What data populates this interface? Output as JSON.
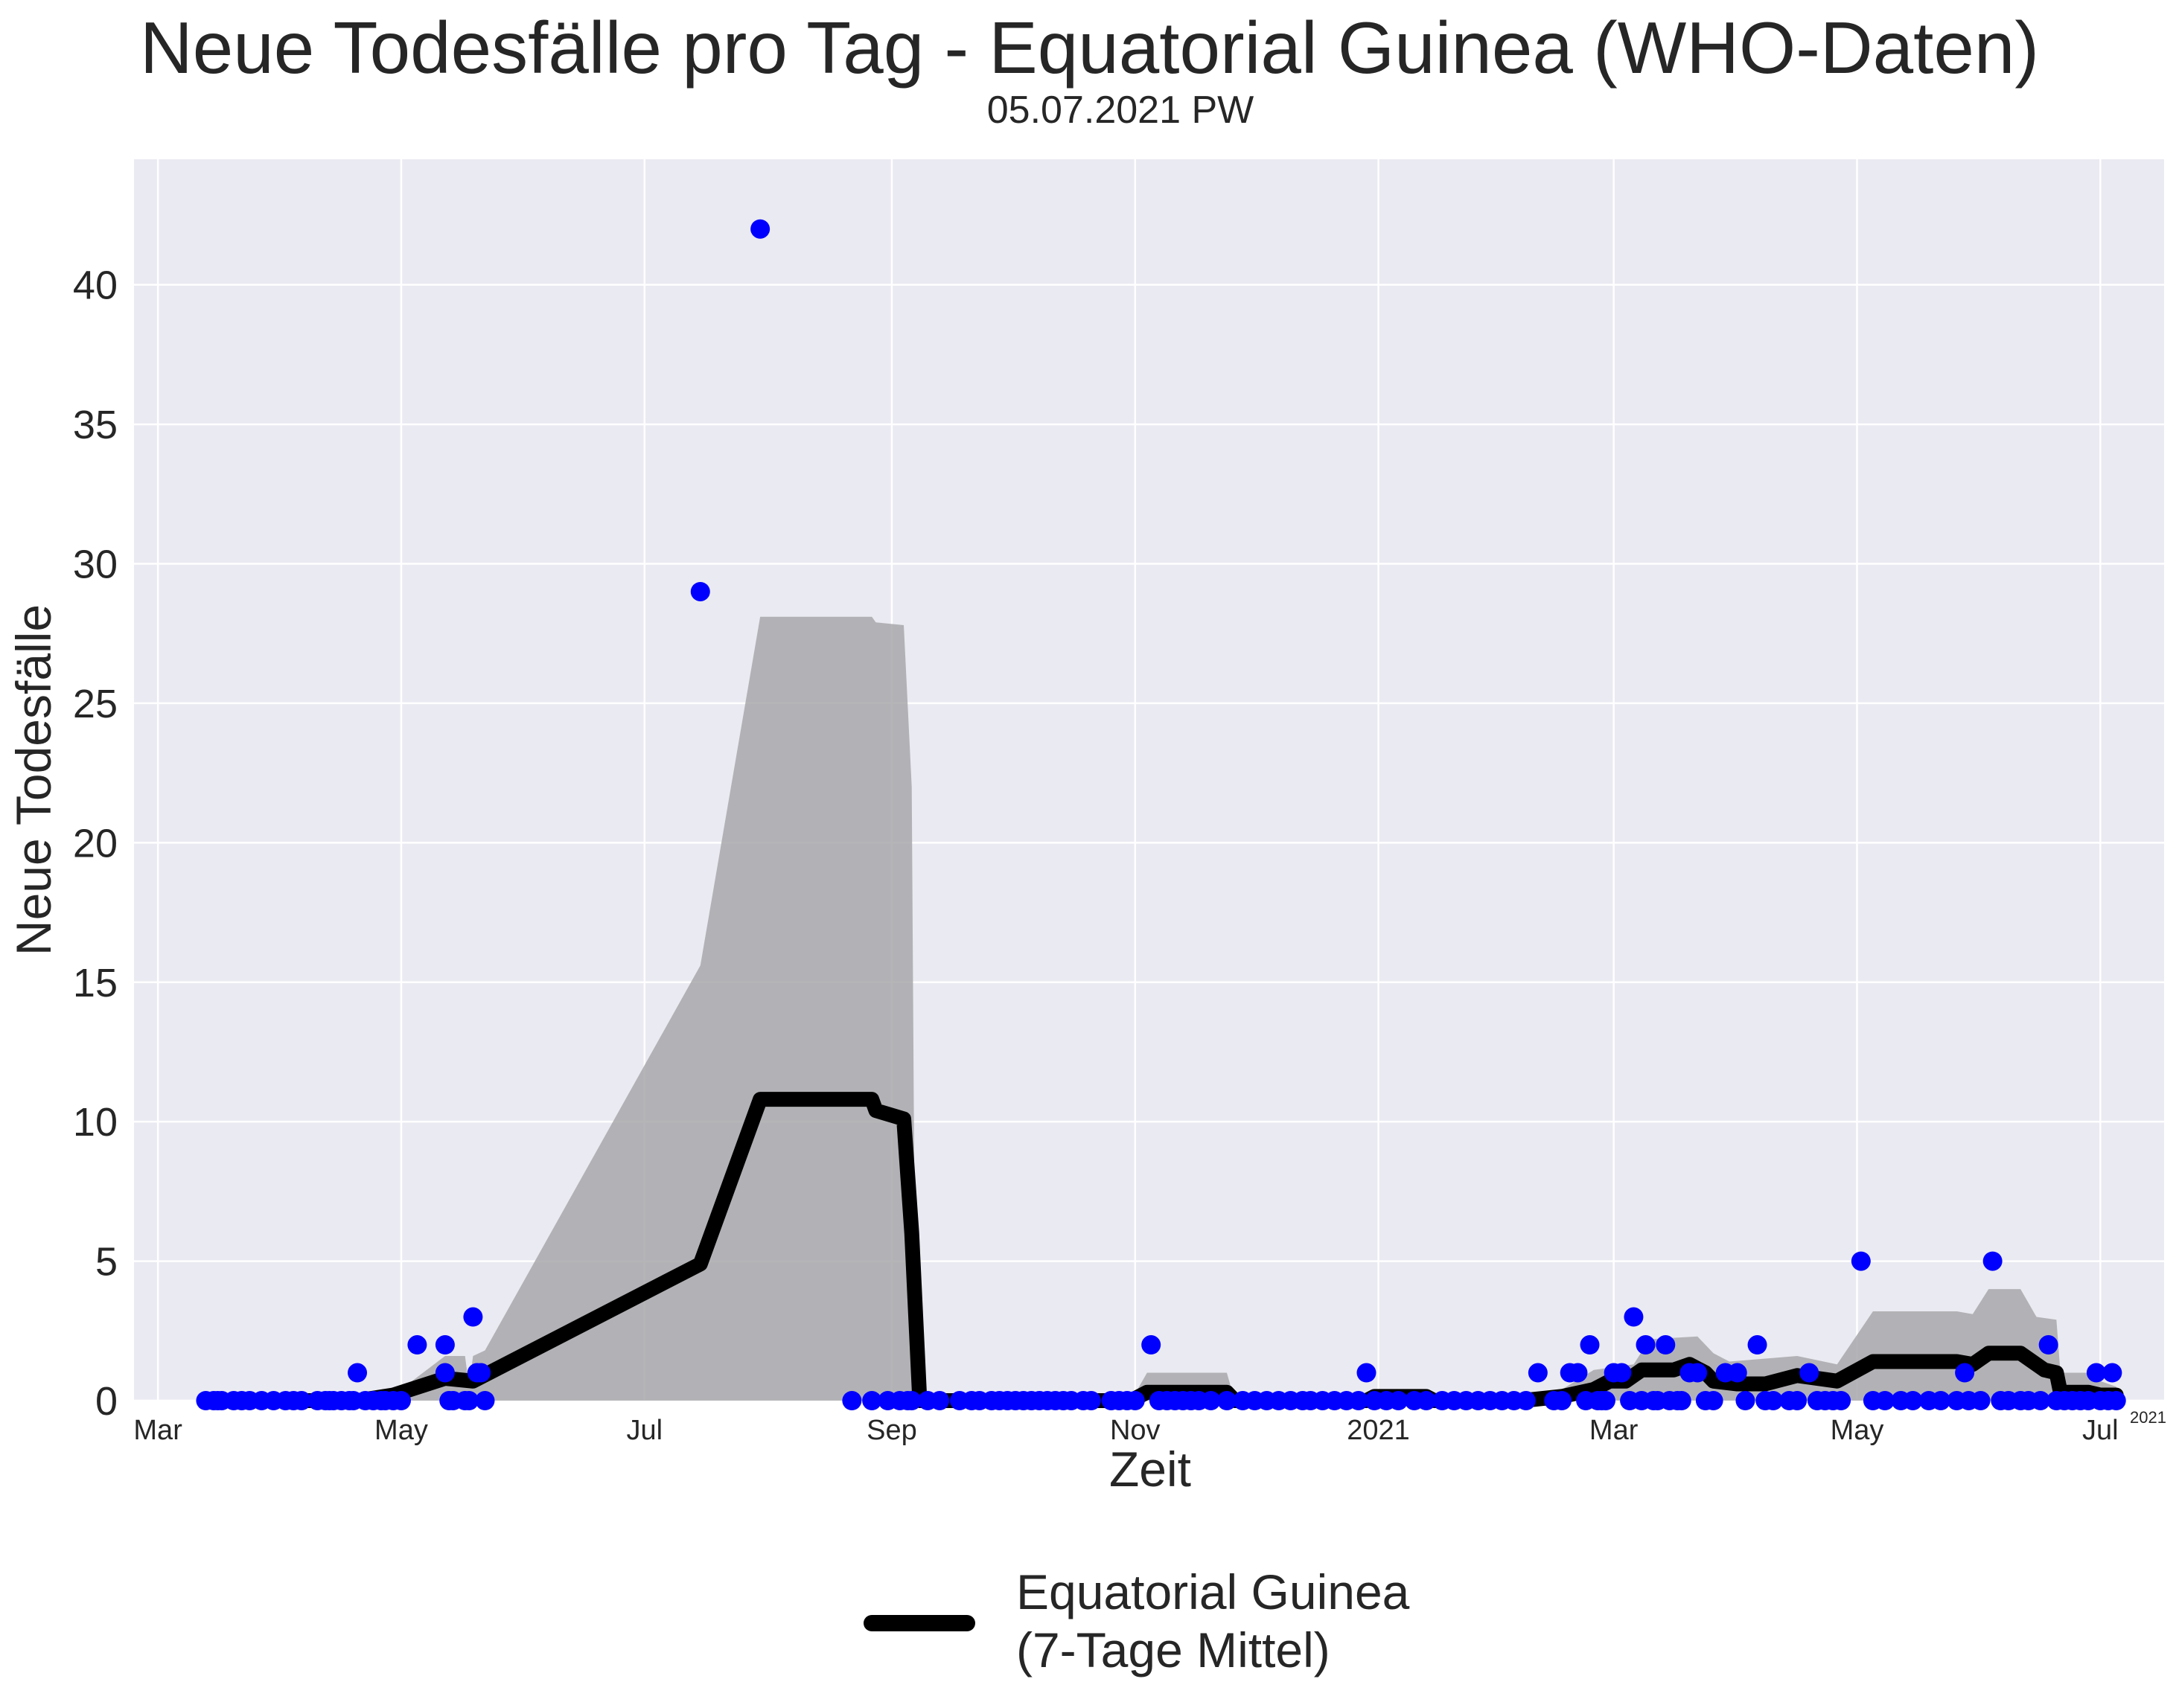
{
  "title": "Neue Todesfälle pro Tag - Equatorial Guinea (WHO-Daten)",
  "subtitle": "05.07.2021 PW",
  "colors": {
    "background": "#eaeaf2",
    "grid": "#ffffff",
    "band": "#a8a8ab",
    "line": "#000000",
    "points": "#0000ff"
  },
  "chart_data": {
    "type": "line",
    "title": "Neue Todesfälle pro Tag - Equatorial Guinea (WHO-Daten)",
    "xlabel": "Zeit",
    "ylabel": "Neue Todesfälle",
    "x_offset_label": "2021",
    "xlim": [
      "2020-02-24",
      "2021-07-17"
    ],
    "ylim": [
      0,
      44.5
    ],
    "grid": true,
    "legend_position": "bottom-center",
    "x_ticks": [
      {
        "date": "2020-03-01",
        "label": "Mar"
      },
      {
        "date": "2020-05-01",
        "label": "May"
      },
      {
        "date": "2020-07-01",
        "label": "Jul"
      },
      {
        "date": "2020-09-01",
        "label": "Sep"
      },
      {
        "date": "2020-11-01",
        "label": "Nov"
      },
      {
        "date": "2021-01-01",
        "label": "2021"
      },
      {
        "date": "2021-03-01",
        "label": "Mar"
      },
      {
        "date": "2021-05-01",
        "label": "May"
      },
      {
        "date": "2021-07-01",
        "label": "Jul"
      }
    ],
    "y_ticks": [
      0,
      5,
      10,
      15,
      20,
      25,
      30,
      35,
      40
    ],
    "series": [
      {
        "name": "Equatorial Guinea\n(7-Tage Mittel)",
        "kind": "line",
        "points": [
          [
            "2020-03-13",
            0
          ],
          [
            "2020-04-20",
            0
          ],
          [
            "2020-04-29",
            0.2
          ],
          [
            "2020-05-12",
            0.8
          ],
          [
            "2020-05-19",
            0.7
          ],
          [
            "2020-07-15",
            4.9
          ],
          [
            "2020-07-30",
            10.8
          ],
          [
            "2020-08-27",
            10.8
          ],
          [
            "2020-08-28",
            10.4
          ],
          [
            "2020-09-04",
            10.1
          ],
          [
            "2020-09-06",
            6
          ],
          [
            "2020-09-08",
            0
          ],
          [
            "2020-10-31",
            0
          ],
          [
            "2020-11-04",
            0.3
          ],
          [
            "2020-11-24",
            0.3
          ],
          [
            "2020-11-26",
            0
          ],
          [
            "2020-12-29",
            0
          ],
          [
            "2020-12-31",
            0.15
          ],
          [
            "2021-01-13",
            0.15
          ],
          [
            "2021-01-15",
            0
          ],
          [
            "2021-02-06",
            0
          ],
          [
            "2021-02-16",
            0.15
          ],
          [
            "2021-02-24",
            0.4
          ],
          [
            "2021-02-28",
            0.7
          ],
          [
            "2021-03-04",
            0.7
          ],
          [
            "2021-03-08",
            1.1
          ],
          [
            "2021-03-16",
            1.1
          ],
          [
            "2021-03-20",
            1.3
          ],
          [
            "2021-03-24",
            1.0
          ],
          [
            "2021-03-26",
            0.7
          ],
          [
            "2021-04-01",
            0.6
          ],
          [
            "2021-04-08",
            0.6
          ],
          [
            "2021-04-16",
            0.9
          ],
          [
            "2021-04-26",
            0.7
          ],
          [
            "2021-05-05",
            1.4
          ],
          [
            "2021-05-26",
            1.4
          ],
          [
            "2021-05-30",
            1.3
          ],
          [
            "2021-06-03",
            1.7
          ],
          [
            "2021-06-11",
            1.7
          ],
          [
            "2021-06-15",
            1.3
          ],
          [
            "2021-06-17",
            1.1
          ],
          [
            "2021-06-20",
            1.0
          ],
          [
            "2021-06-21",
            0.3
          ],
          [
            "2021-06-28",
            0.3
          ],
          [
            "2021-07-01",
            0.2
          ],
          [
            "2021-07-05",
            0.2
          ]
        ]
      },
      {
        "name": "",
        "kind": "band",
        "points": [
          [
            "2020-03-13",
            0
          ],
          [
            "2020-04-20",
            0
          ],
          [
            "2020-04-30",
            0.3
          ],
          [
            "2020-05-12",
            1.6
          ],
          [
            "2020-05-17",
            1.6
          ],
          [
            "2020-05-18",
            0.5
          ],
          [
            "2020-05-19",
            1.6
          ],
          [
            "2020-05-22",
            1.8
          ],
          [
            "2020-07-15",
            15.6
          ],
          [
            "2020-07-30",
            28.1
          ],
          [
            "2020-08-27",
            28.1
          ],
          [
            "2020-08-28",
            27.9
          ],
          [
            "2020-09-04",
            27.8
          ],
          [
            "2020-09-06",
            22
          ],
          [
            "2020-09-07",
            0
          ],
          [
            "2020-10-31",
            0
          ],
          [
            "2020-11-04",
            1.0
          ],
          [
            "2020-11-24",
            1.0
          ],
          [
            "2020-11-26",
            0
          ],
          [
            "2020-12-29",
            0
          ],
          [
            "2020-12-31",
            0.4
          ],
          [
            "2021-01-13",
            0.4
          ],
          [
            "2021-01-15",
            0
          ],
          [
            "2021-02-06",
            0
          ],
          [
            "2021-02-16",
            0.4
          ],
          [
            "2021-02-24",
            1.1
          ],
          [
            "2021-03-06",
            1.3
          ],
          [
            "2021-03-10",
            2.2
          ],
          [
            "2021-03-22",
            2.3
          ],
          [
            "2021-03-26",
            1.7
          ],
          [
            "2021-03-30",
            1.4
          ],
          [
            "2021-04-16",
            1.6
          ],
          [
            "2021-04-26",
            1.3
          ],
          [
            "2021-05-05",
            3.2
          ],
          [
            "2021-05-26",
            3.2
          ],
          [
            "2021-05-30",
            3.1
          ],
          [
            "2021-06-03",
            4.0
          ],
          [
            "2021-06-11",
            4.0
          ],
          [
            "2021-06-15",
            3.0
          ],
          [
            "2021-06-20",
            2.9
          ],
          [
            "2021-06-21",
            1.0
          ],
          [
            "2021-06-28",
            1.0
          ],
          [
            "2021-07-01",
            0.7
          ],
          [
            "2021-07-05",
            0.5
          ]
        ]
      },
      {
        "name": "",
        "kind": "scatter",
        "points": [
          [
            "2020-03-13",
            0
          ],
          [
            "2020-03-15",
            0
          ],
          [
            "2020-03-16",
            0
          ],
          [
            "2020-03-17",
            0
          ],
          [
            "2020-03-20",
            0
          ],
          [
            "2020-03-22",
            0
          ],
          [
            "2020-03-24",
            0
          ],
          [
            "2020-03-27",
            0
          ],
          [
            "2020-03-30",
            0
          ],
          [
            "2020-04-02",
            0
          ],
          [
            "2020-04-04",
            0
          ],
          [
            "2020-04-06",
            0
          ],
          [
            "2020-04-10",
            0
          ],
          [
            "2020-04-12",
            0
          ],
          [
            "2020-04-13",
            0
          ],
          [
            "2020-04-14",
            0
          ],
          [
            "2020-04-16",
            0
          ],
          [
            "2020-04-18",
            0
          ],
          [
            "2020-04-19",
            0
          ],
          [
            "2020-04-20",
            1
          ],
          [
            "2020-04-22",
            0
          ],
          [
            "2020-04-24",
            0
          ],
          [
            "2020-04-26",
            0
          ],
          [
            "2020-04-27",
            0
          ],
          [
            "2020-04-29",
            0
          ],
          [
            "2020-05-01",
            0
          ],
          [
            "2020-05-05",
            2
          ],
          [
            "2020-05-12",
            2
          ],
          [
            "2020-05-12",
            1
          ],
          [
            "2020-05-13",
            0
          ],
          [
            "2020-05-14",
            0
          ],
          [
            "2020-05-17",
            0
          ],
          [
            "2020-05-18",
            0
          ],
          [
            "2020-05-19",
            3
          ],
          [
            "2020-05-20",
            1
          ],
          [
            "2020-05-21",
            1
          ],
          [
            "2020-05-22",
            0
          ],
          [
            "2020-07-15",
            29
          ],
          [
            "2020-07-30",
            42
          ],
          [
            "2020-08-22",
            0
          ],
          [
            "2020-08-27",
            0
          ],
          [
            "2020-08-31",
            0
          ],
          [
            "2020-09-03",
            0
          ],
          [
            "2020-09-05",
            0
          ],
          [
            "2020-09-06",
            0
          ],
          [
            "2020-09-10",
            0
          ],
          [
            "2020-09-13",
            0
          ],
          [
            "2020-09-18",
            0
          ],
          [
            "2020-09-21",
            0
          ],
          [
            "2020-09-23",
            0
          ],
          [
            "2020-09-26",
            0
          ],
          [
            "2020-09-28",
            0
          ],
          [
            "2020-09-30",
            0
          ],
          [
            "2020-10-02",
            0
          ],
          [
            "2020-10-04",
            0
          ],
          [
            "2020-10-06",
            0
          ],
          [
            "2020-10-08",
            0
          ],
          [
            "2020-10-10",
            0
          ],
          [
            "2020-10-12",
            0
          ],
          [
            "2020-10-14",
            0
          ],
          [
            "2020-10-16",
            0
          ],
          [
            "2020-10-19",
            0
          ],
          [
            "2020-10-21",
            0
          ],
          [
            "2020-10-26",
            0
          ],
          [
            "2020-10-28",
            0
          ],
          [
            "2020-10-30",
            0
          ],
          [
            "2020-11-01",
            0
          ],
          [
            "2020-11-05",
            2
          ],
          [
            "2020-11-07",
            0
          ],
          [
            "2020-11-09",
            0
          ],
          [
            "2020-11-11",
            0
          ],
          [
            "2020-11-13",
            0
          ],
          [
            "2020-11-15",
            0
          ],
          [
            "2020-11-17",
            0
          ],
          [
            "2020-11-20",
            0
          ],
          [
            "2020-11-24",
            0
          ],
          [
            "2020-11-28",
            0
          ],
          [
            "2020-12-01",
            0
          ],
          [
            "2020-12-04",
            0
          ],
          [
            "2020-12-07",
            0
          ],
          [
            "2020-12-10",
            0
          ],
          [
            "2020-12-13",
            0
          ],
          [
            "2020-12-15",
            0
          ],
          [
            "2020-12-18",
            0
          ],
          [
            "2020-12-21",
            0
          ],
          [
            "2020-12-24",
            0
          ],
          [
            "2020-12-27",
            0
          ],
          [
            "2020-12-29",
            1
          ],
          [
            "2020-12-31",
            0
          ],
          [
            "2021-01-03",
            0
          ],
          [
            "2021-01-06",
            0
          ],
          [
            "2021-01-10",
            0
          ],
          [
            "2021-01-13",
            0
          ],
          [
            "2021-01-17",
            0
          ],
          [
            "2021-01-20",
            0
          ],
          [
            "2021-01-23",
            0
          ],
          [
            "2021-01-26",
            0
          ],
          [
            "2021-01-29",
            0
          ],
          [
            "2021-02-01",
            0
          ],
          [
            "2021-02-04",
            0
          ],
          [
            "2021-02-07",
            0
          ],
          [
            "2021-02-10",
            1
          ],
          [
            "2021-02-14",
            0
          ],
          [
            "2021-02-16",
            0
          ],
          [
            "2021-02-18",
            1
          ],
          [
            "2021-02-20",
            1
          ],
          [
            "2021-02-22",
            0
          ],
          [
            "2021-02-23",
            2
          ],
          [
            "2021-02-25",
            0
          ],
          [
            "2021-02-26",
            0
          ],
          [
            "2021-02-27",
            0
          ],
          [
            "2021-03-01",
            1
          ],
          [
            "2021-03-03",
            1
          ],
          [
            "2021-03-05",
            0
          ],
          [
            "2021-03-06",
            3
          ],
          [
            "2021-03-08",
            0
          ],
          [
            "2021-03-09",
            2
          ],
          [
            "2021-03-11",
            0
          ],
          [
            "2021-03-12",
            0
          ],
          [
            "2021-03-14",
            2
          ],
          [
            "2021-03-15",
            0
          ],
          [
            "2021-03-17",
            0
          ],
          [
            "2021-03-18",
            0
          ],
          [
            "2021-03-20",
            1
          ],
          [
            "2021-03-22",
            1
          ],
          [
            "2021-03-24",
            0
          ],
          [
            "2021-03-26",
            0
          ],
          [
            "2021-03-29",
            1
          ],
          [
            "2021-04-01",
            1
          ],
          [
            "2021-04-03",
            0
          ],
          [
            "2021-04-06",
            2
          ],
          [
            "2021-04-08",
            0
          ],
          [
            "2021-04-10",
            0
          ],
          [
            "2021-04-14",
            0
          ],
          [
            "2021-04-16",
            0
          ],
          [
            "2021-04-19",
            1
          ],
          [
            "2021-04-21",
            0
          ],
          [
            "2021-04-23",
            0
          ],
          [
            "2021-04-25",
            0
          ],
          [
            "2021-04-27",
            0
          ],
          [
            "2021-05-02",
            5
          ],
          [
            "2021-05-05",
            0
          ],
          [
            "2021-05-08",
            0
          ],
          [
            "2021-05-12",
            0
          ],
          [
            "2021-05-15",
            0
          ],
          [
            "2021-05-19",
            0
          ],
          [
            "2021-05-22",
            0
          ],
          [
            "2021-05-26",
            0
          ],
          [
            "2021-05-28",
            1
          ],
          [
            "2021-05-29",
            0
          ],
          [
            "2021-06-01",
            0
          ],
          [
            "2021-06-04",
            5
          ],
          [
            "2021-06-06",
            0
          ],
          [
            "2021-06-08",
            0
          ],
          [
            "2021-06-11",
            0
          ],
          [
            "2021-06-13",
            0
          ],
          [
            "2021-06-16",
            0
          ],
          [
            "2021-06-18",
            2
          ],
          [
            "2021-06-20",
            0
          ],
          [
            "2021-06-22",
            0
          ],
          [
            "2021-06-24",
            0
          ],
          [
            "2021-06-26",
            0
          ],
          [
            "2021-06-28",
            0
          ],
          [
            "2021-06-30",
            1
          ],
          [
            "2021-07-01",
            0
          ],
          [
            "2021-07-03",
            0
          ],
          [
            "2021-07-04",
            1
          ],
          [
            "2021-07-05",
            0
          ]
        ]
      }
    ]
  }
}
